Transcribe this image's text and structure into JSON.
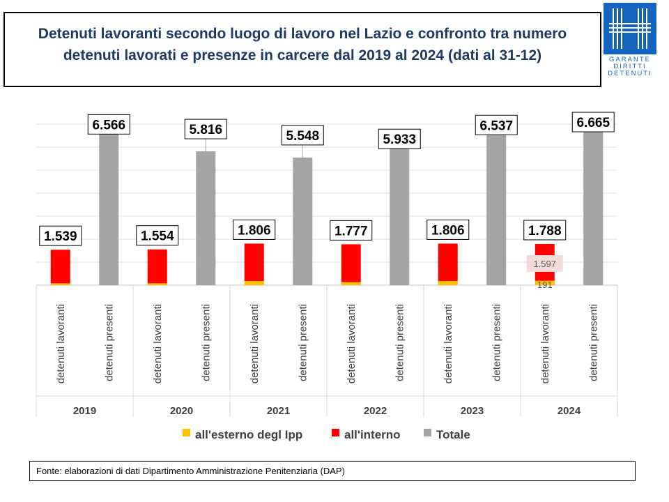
{
  "title_lines": [
    "Detenuti lavoranti secondo luogo di lavoro nel Lazio e confronto tra numero",
    "detenuti lavorati  e presenze in carcere dal 2019 al 2024 (dati al 31-12)"
  ],
  "logo": {
    "lines": [
      "GARANTE",
      "DIRITTI",
      "DETENUTI"
    ],
    "color": "#1565c0"
  },
  "source": "Fonte: elaborazioni di dati Dipartimento Amministrazione Penitenziaria (DAP)",
  "chart_data": {
    "type": "bar",
    "years": [
      "2019",
      "2020",
      "2021",
      "2022",
      "2023",
      "2024"
    ],
    "bar_categories": [
      "detenuti lavoranti",
      "detenuti presenti"
    ],
    "series": [
      {
        "name": "all'esterno degl Ipp",
        "color": "#ffc000",
        "values": [
          80,
          80,
          180,
          130,
          180,
          191
        ]
      },
      {
        "name": "all'interno",
        "color": "#ff0000",
        "values": [
          1459,
          1474,
          1626,
          1647,
          1626,
          1597
        ]
      },
      {
        "name": "Totale",
        "color": "#a5a5a5",
        "values": [
          6566,
          5816,
          5548,
          5933,
          6537,
          6665
        ]
      }
    ],
    "lavoranti_total_labels": [
      "1.539",
      "1.554",
      "1.806",
      "1.777",
      "1.806",
      "1.788"
    ],
    "presenti_labels": [
      "6.566",
      "5.816",
      "5.548",
      "5.933",
      "6.537",
      "6.665"
    ],
    "segment_labels_2024": {
      "all_interno": "1.597",
      "all_esterno": "191"
    },
    "ylim": [
      0,
      7000
    ],
    "gridlines": true,
    "legend_position": "bottom"
  }
}
